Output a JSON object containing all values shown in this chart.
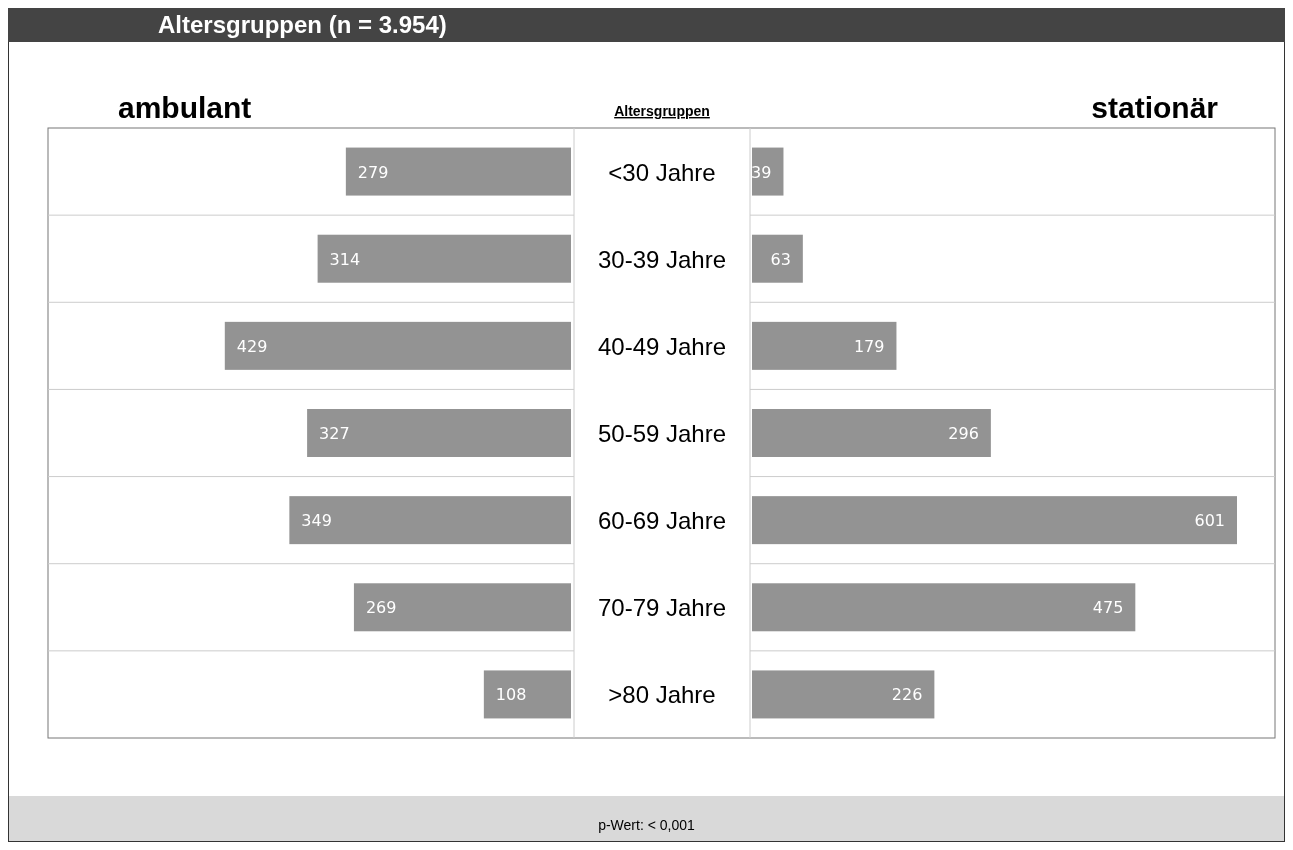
{
  "chart_data": [
    {
      "type": "bar",
      "orientation": "horizontal",
      "title": "Altersgruppen (n = 3.954)",
      "ylabel": "Altersgruppen",
      "categories": [
        "<30 Jahre",
        "30-39 Jahre",
        "40-49 Jahre",
        "50-59 Jahre",
        "60-69 Jahre",
        "70-79 Jahre",
        ">80 Jahre"
      ],
      "series": [
        {
          "name": "ambulant",
          "color": "#939393",
          "values": [
            279,
            314,
            429,
            327,
            349,
            269,
            108
          ]
        }
      ],
      "data_labels": true,
      "grid": "y",
      "annotations": [
        "p-Wert: < 0,001"
      ]
    },
    {
      "type": "bar",
      "orientation": "horizontal",
      "categories": [
        null,
        null,
        null,
        null,
        null,
        null,
        null
      ],
      "series": [
        {
          "name": "stationär",
          "color": "#939393",
          "values": [
            39,
            63,
            179,
            296,
            601,
            475,
            226
          ]
        }
      ],
      "data_labels": true,
      "grid": "y"
    }
  ]
}
